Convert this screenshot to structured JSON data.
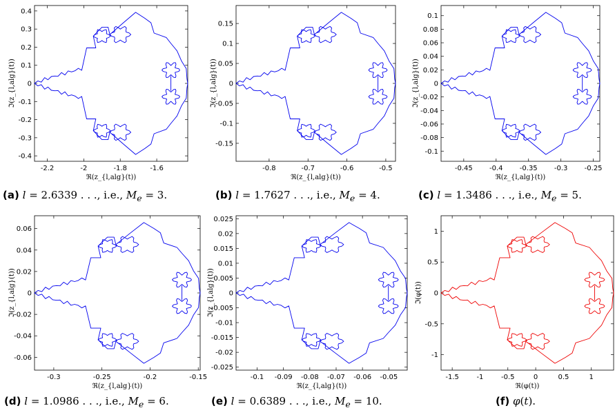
{
  "chart_data": [
    {
      "type": "line",
      "panel": "a",
      "color": "#0000ee",
      "xlabel": "ℜ(z_{l,alg}(t))",
      "ylabel": "ℑ(z_{l,alg}(t))",
      "xlim": [
        -2.27,
        -1.43
      ],
      "ylim": [
        -0.43,
        0.43
      ],
      "xticks": [
        -2.2,
        -2,
        -1.8,
        -1.6
      ],
      "xtick_labels": [
        "-2.2",
        "-2",
        "-1.8",
        "-1.6"
      ],
      "yticks": [
        -0.4,
        -0.3,
        -0.2,
        -0.1,
        0,
        0.1,
        0.2,
        0.3,
        0.4
      ],
      "ytick_labels": [
        "-0.4",
        "-0.3",
        "-0.2",
        "-0.1",
        "0",
        "0.1",
        "0.2",
        "0.3",
        "0.4"
      ],
      "caption_label": "(a)",
      "caption_text": "l = 2.6339 . . ., i.e., M_e = 3."
    },
    {
      "type": "line",
      "panel": "b",
      "color": "#0000ee",
      "xlabel": "ℜ(z_{l,alg}(t))",
      "ylabel": "ℑ(z_{l,alg}(t))",
      "xlim": [
        -0.885,
        -0.475
      ],
      "ylim": [
        -0.195,
        0.195
      ],
      "xticks": [
        -0.8,
        -0.7,
        -0.6,
        -0.5
      ],
      "xtick_labels": [
        "-0.8",
        "-0.7",
        "-0.6",
        "-0.5"
      ],
      "yticks": [
        -0.15,
        -0.1,
        -0.05,
        0,
        0.05,
        0.1,
        0.15
      ],
      "ytick_labels": [
        "-0.15",
        "-0.1",
        "-0.05",
        "0",
        "0.05",
        "0.1",
        "0.15"
      ],
      "caption_label": "(b)",
      "caption_text": "l = 1.7627 . . ., i.e., M_e = 4."
    },
    {
      "type": "line",
      "panel": "c",
      "color": "#0000ee",
      "xlabel": "ℜ(z_{l,alg}(t))",
      "ylabel": "ℑ(z_{l,alg}(t))",
      "xlim": [
        -0.485,
        -0.24
      ],
      "ylim": [
        -0.115,
        0.115
      ],
      "xticks": [
        -0.45,
        -0.4,
        -0.35,
        -0.3,
        -0.25
      ],
      "xtick_labels": [
        "-0.45",
        "-0.4",
        "-0.35",
        "-0.3",
        "-0.25"
      ],
      "yticks": [
        -0.1,
        -0.08,
        -0.06,
        -0.04,
        -0.02,
        0,
        0.02,
        0.04,
        0.06,
        0.08,
        0.1
      ],
      "ytick_labels": [
        "-0.1",
        "-0.08",
        "-0.06",
        "-0.04",
        "-0.02",
        "0",
        "0.02",
        "0.04",
        "0.06",
        "0.08",
        "0.1"
      ],
      "caption_label": "(c)",
      "caption_text": "l = 1.3486 . . ., i.e., M_e = 5."
    },
    {
      "type": "line",
      "panel": "d",
      "color": "#0000ee",
      "xlabel": "ℜ(z_{l,alg}(t))",
      "ylabel": "ℑ(z_{l,alg}(t))",
      "xlim": [
        -0.32,
        -0.148
      ],
      "ylim": [
        -0.072,
        0.072
      ],
      "xticks": [
        -0.3,
        -0.25,
        -0.2,
        -0.15
      ],
      "xtick_labels": [
        "-0.3",
        "-0.25",
        "-0.2",
        "-0.15"
      ],
      "yticks": [
        -0.06,
        -0.04,
        -0.02,
        0,
        0.02,
        0.04,
        0.06
      ],
      "ytick_labels": [
        "-0.06",
        "-0.04",
        "-0.02",
        "0",
        "0.02",
        "0.04",
        "0.06"
      ],
      "caption_label": "(d)",
      "caption_text": "l = 1.0986 . . ., i.e., M_e = 6."
    },
    {
      "type": "line",
      "panel": "e",
      "color": "#0000ee",
      "xlabel": "ℜ(z_{l,alg}(t))",
      "ylabel": "ℑ(z_{l,alg}(t))",
      "xlim": [
        -0.108,
        -0.043
      ],
      "ylim": [
        -0.026,
        0.026
      ],
      "xticks": [
        -0.1,
        -0.09,
        -0.08,
        -0.07,
        -0.06,
        -0.05
      ],
      "xtick_labels": [
        "-0.1",
        "-0.09",
        "-0.08",
        "-0.07",
        "-0.06",
        "-0.05"
      ],
      "yticks": [
        -0.025,
        -0.02,
        -0.015,
        -0.01,
        -0.005,
        0,
        0.005,
        0.01,
        0.015,
        0.02,
        0.025
      ],
      "ytick_labels": [
        "-0.025",
        "-0.02",
        "-0.015",
        "-0.01",
        "-0.005",
        "0",
        "0.005",
        "0.01",
        "0.015",
        "0.02",
        "0.025"
      ],
      "caption_label": "(e)",
      "caption_text": "l = 0.6389 . . ., i.e., M_e = 10."
    },
    {
      "type": "line",
      "panel": "f",
      "color": "#ee0000",
      "xlabel": "ℜ(φ(t))",
      "ylabel": "ℑ(φ(t))",
      "xlim": [
        -1.7,
        1.4
      ],
      "ylim": [
        -1.25,
        1.25
      ],
      "xticks": [
        -1.5,
        -1,
        -0.5,
        0,
        0.5,
        1
      ],
      "xtick_labels": [
        "-1.5",
        "-1",
        "-0.5",
        "0",
        "0.5",
        "1"
      ],
      "yticks": [
        -1,
        -0.5,
        0,
        0.5,
        1
      ],
      "ytick_labels": [
        "-1",
        "-0.5",
        "0",
        "0.5",
        "1"
      ],
      "caption_label": "(f)",
      "caption_text": "φ(t)."
    }
  ]
}
